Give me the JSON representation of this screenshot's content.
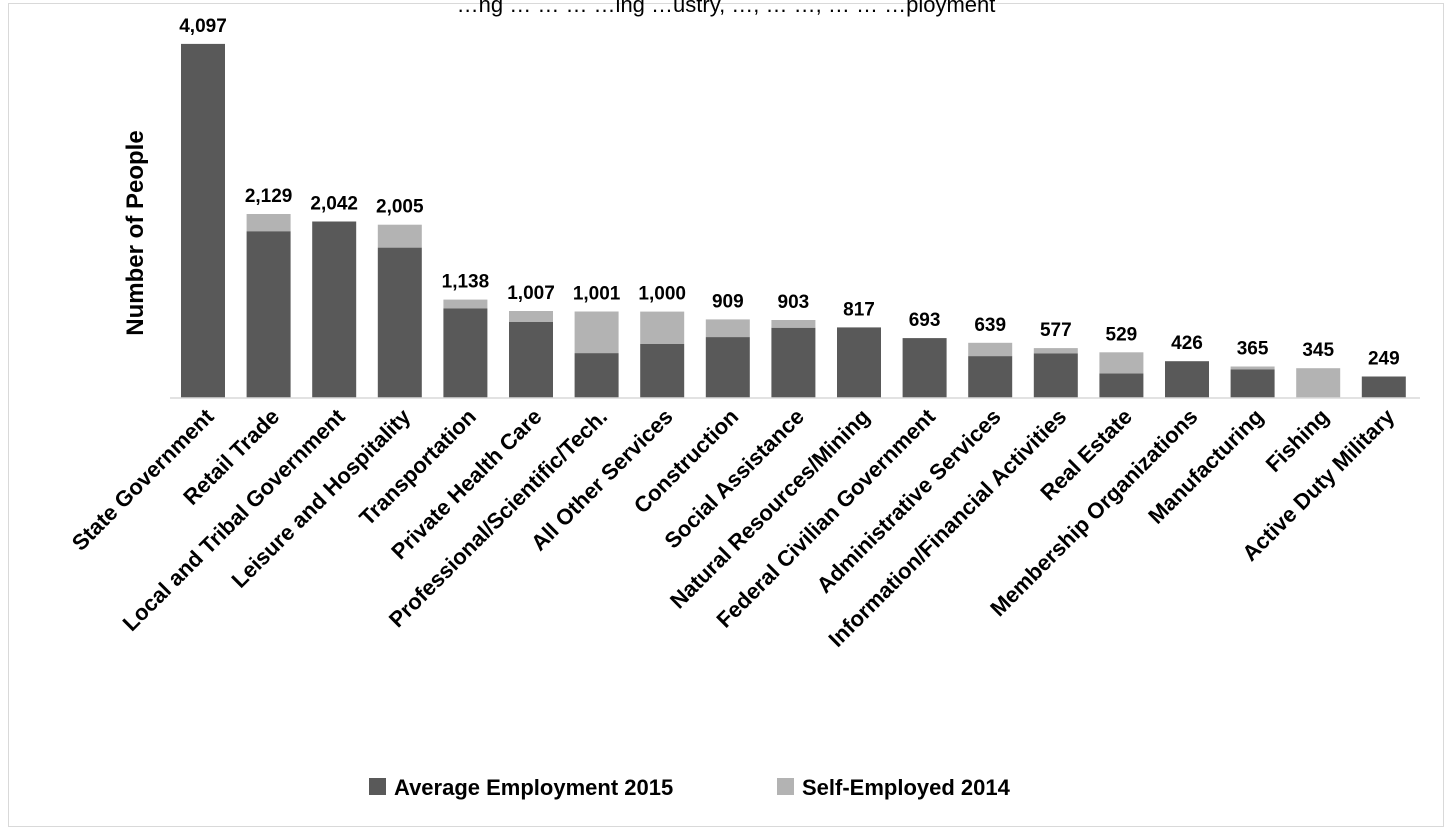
{
  "chart_data": {
    "type": "bar",
    "stacked": true,
    "title": "…ng … … … …ing …ustry, …, … …, … … …ployment",
    "ylabel": "Number of People",
    "xlabel": "",
    "ylim": [
      0,
      4200
    ],
    "grid": false,
    "legend_position": "bottom",
    "categories": [
      "State Government",
      "Retail Trade",
      "Local and Tribal Government",
      "Leisure and Hospitality",
      "Transportation",
      "Private Health Care",
      "Professional/Scientific/Tech.",
      "All Other Services",
      "Construction",
      "Social Assistance",
      "Natural Resources/Mining",
      "Federal Civilian Government",
      "Administrative Services",
      "Information/Financial Activities",
      "Real Estate",
      "Membership Organizations",
      "Manufacturing",
      "Fishing",
      "Active Duty Military"
    ],
    "totals": [
      "4,097",
      "2,129",
      "2,042",
      "2,005",
      "1,138",
      "1,007",
      "1,001",
      "1,000",
      "909",
      "903",
      "817",
      "693",
      "639",
      "577",
      "529",
      "426",
      "365",
      "345",
      "249"
    ],
    "series": [
      {
        "name": "Average Employment 2015",
        "color": "#595959",
        "values": [
          4097,
          1930,
          2042,
          1740,
          1035,
          880,
          520,
          625,
          705,
          813,
          817,
          693,
          485,
          515,
          285,
          426,
          330,
          0,
          249
        ]
      },
      {
        "name": "Self-Employed 2014",
        "color": "#b3b3b3",
        "values": [
          0,
          199,
          0,
          265,
          103,
          127,
          481,
          375,
          204,
          90,
          0,
          0,
          154,
          62,
          244,
          0,
          35,
          345,
          0
        ]
      }
    ]
  }
}
